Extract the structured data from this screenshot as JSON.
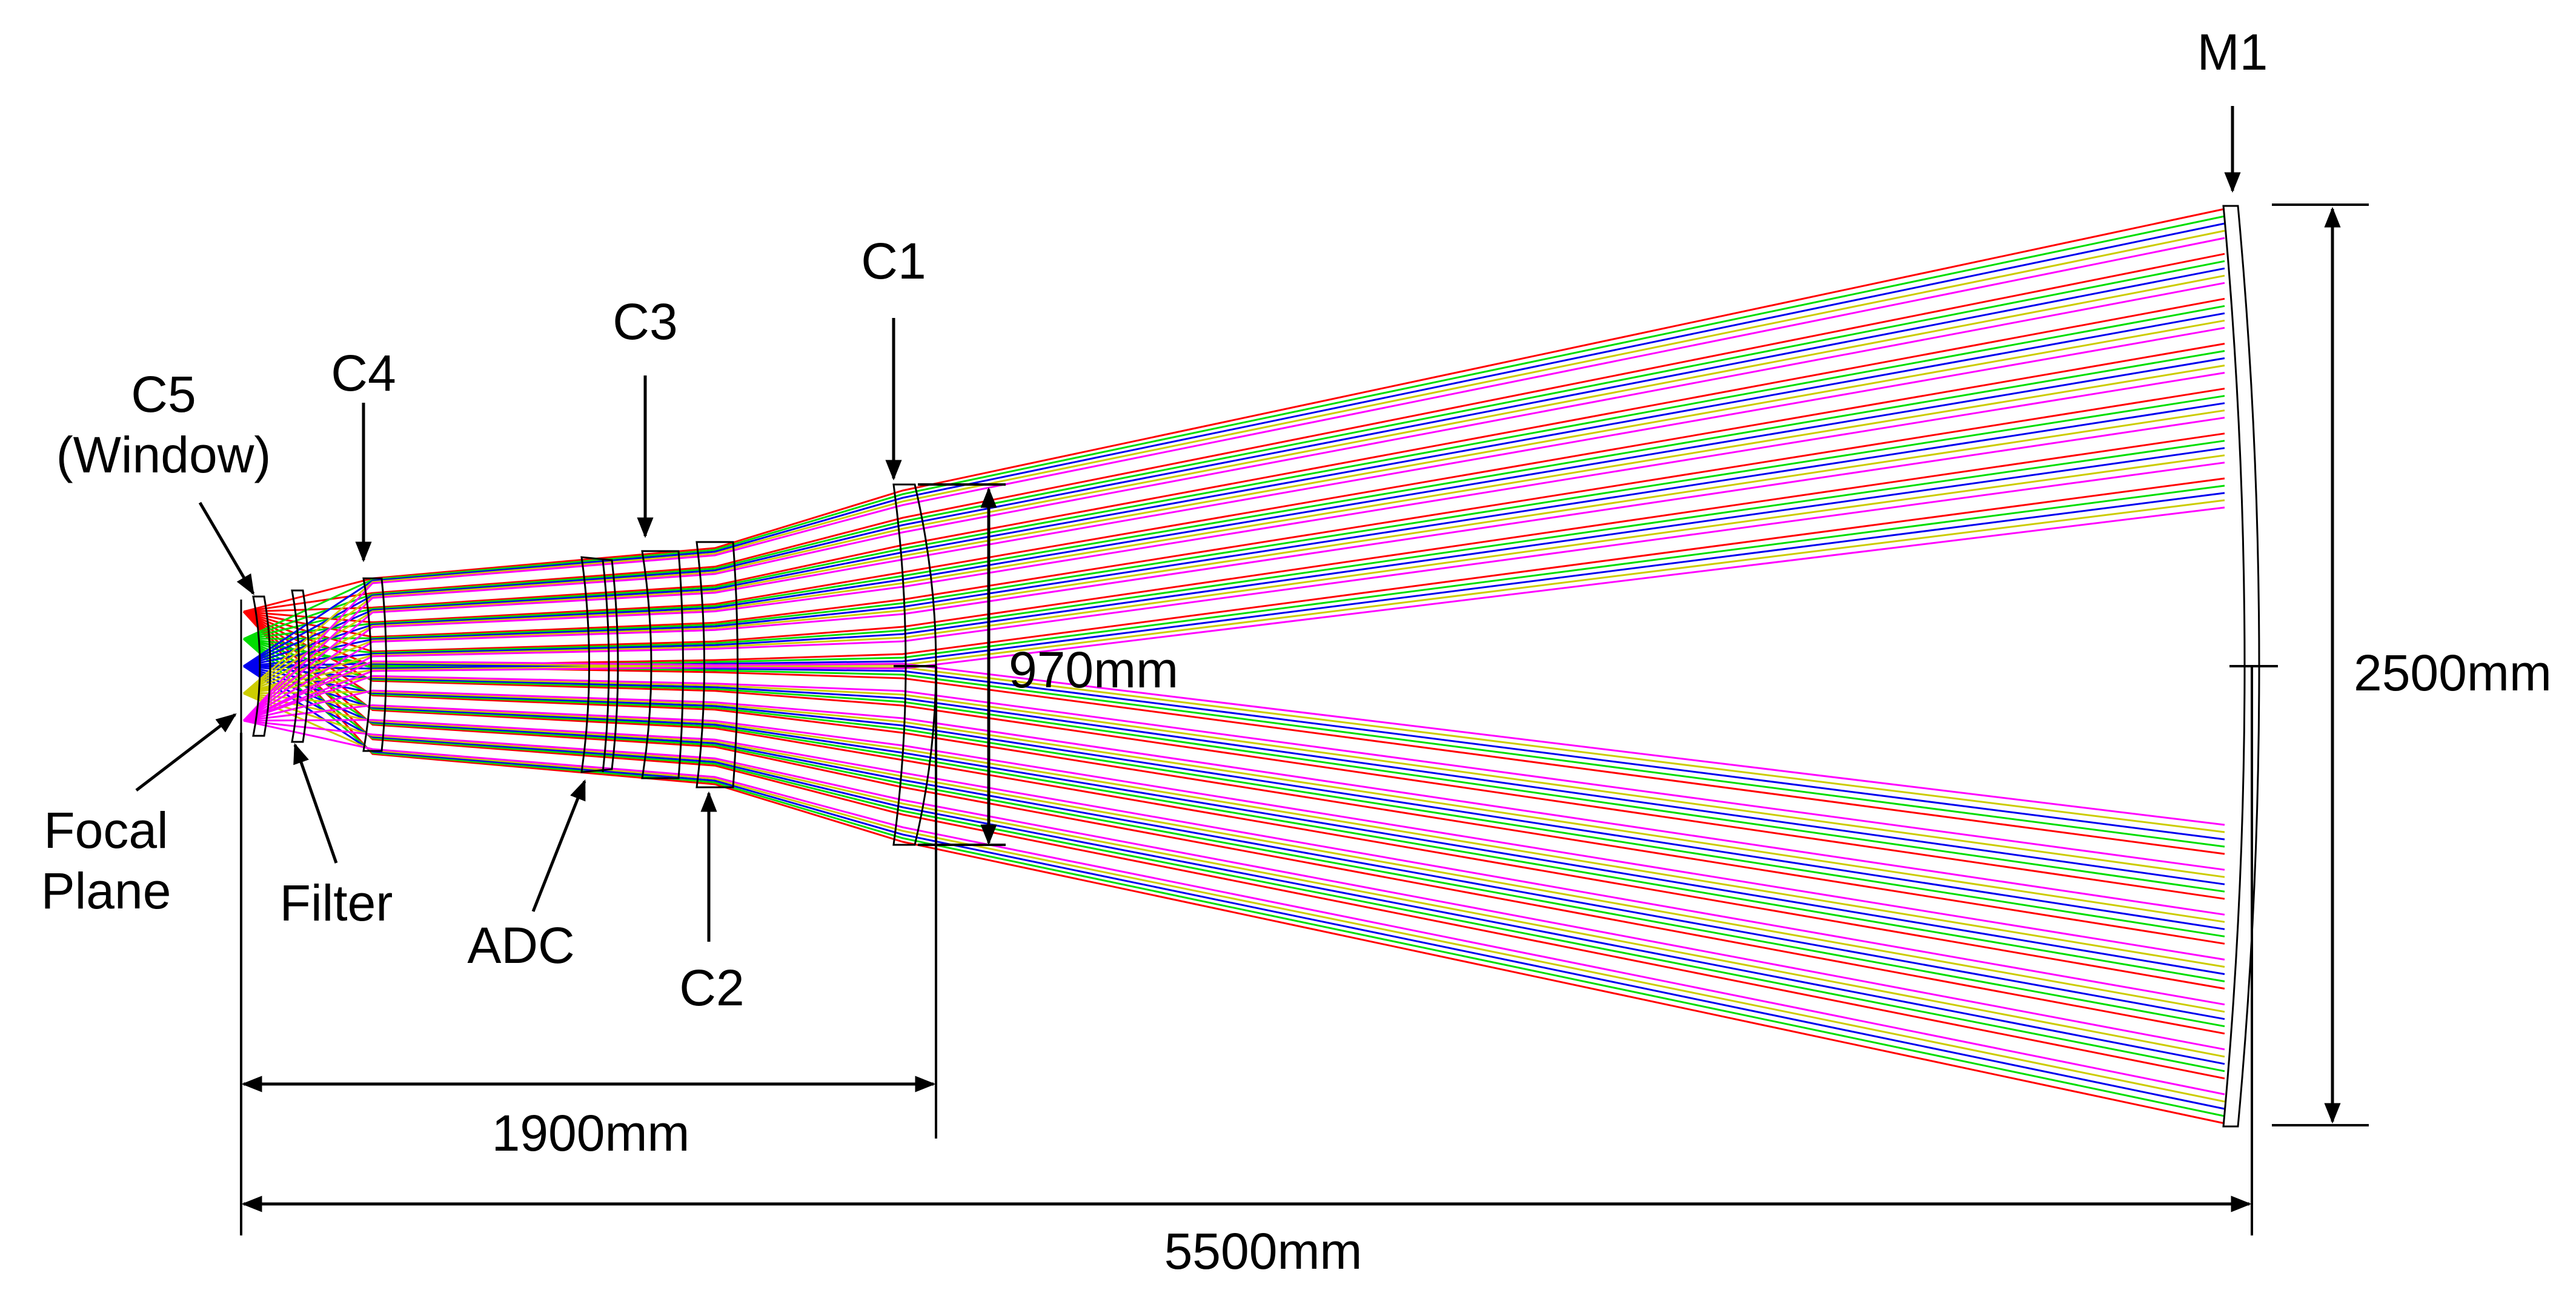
{
  "labels": {
    "m1": "M1",
    "c1": "C1",
    "c2": "C2",
    "c3": "C3",
    "c4": "C4",
    "c5_line1": "C5",
    "c5_line2": "(Window)",
    "focal_line1": "Focal",
    "focal_line2": "Plane",
    "filter": "Filter",
    "adc": "ADC"
  },
  "dimensions": {
    "c1_aperture": "970mm",
    "m1_aperture": "2500mm",
    "focal_to_c1": "1900mm",
    "focal_to_m1": "5500mm"
  },
  "ray_colors": [
    "#ff0000",
    "#00dd00",
    "#0000ee",
    "#cccc00",
    "#ff00ff"
  ],
  "line_color": "#000000"
}
